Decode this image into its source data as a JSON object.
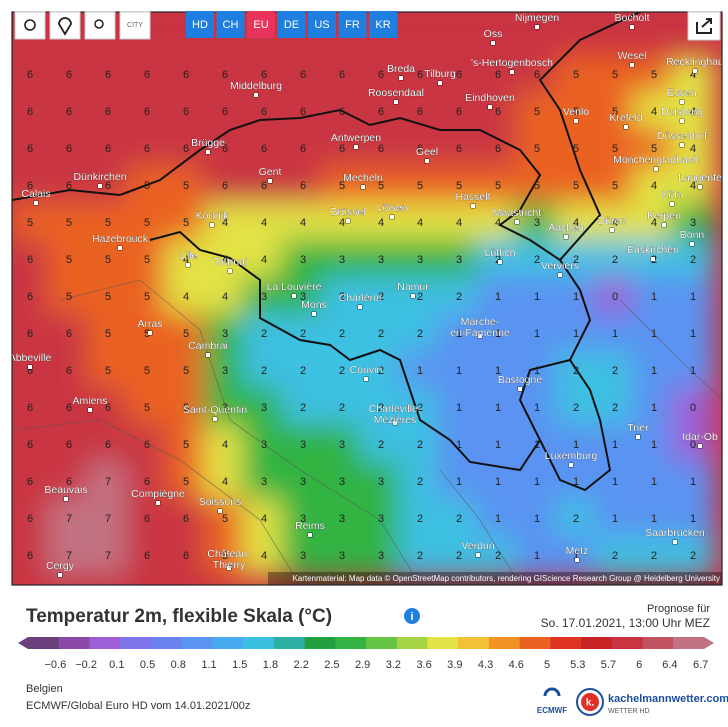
{
  "toolbar": {
    "city_icon": "CITY",
    "regions": [
      "HD",
      "CH",
      "EU",
      "DE",
      "US",
      "FR",
      "KR"
    ],
    "active_region": "EU"
  },
  "cities": [
    "Nijmegen",
    "Bocholt",
    "Oss",
    "'s-Hertogenbosch",
    "Wesel",
    "Recklinghau",
    "Breda",
    "Tilburg",
    "Middelburg",
    "Roosendaal",
    "Eindhoven",
    "Essen",
    "Duisburg",
    "Venlo",
    "Krefeld",
    "Düsseldorf",
    "Antwerpen",
    "Brügge",
    "Mönchengladbach",
    "Geel",
    "Gent",
    "Langenfe",
    "Dünkirchen",
    "Mecheln",
    "Calais",
    "Hasselt",
    "Köln",
    "Kortrijk",
    "Brüssel",
    "Löwen",
    "Maastricht",
    "Düren",
    "Kerpen",
    "Hazebrouck",
    "Aachen",
    "Bonn",
    "Euskirchen",
    "Lüttich",
    "Lille",
    "Tournai",
    "Verviers",
    "La Louvière",
    "Namur",
    "Mons",
    "Charleroi",
    "Arras",
    "Marche-\nen-Famenne",
    "Cambrai",
    "Abbeville",
    "Couvin",
    "Bastogne",
    "Amiens",
    "Saint-Quentin",
    "Charleville-\nMézières",
    "Trier",
    "Idar-Ob",
    "Luxemburg",
    "Beauvais",
    "Compiègne",
    "Soissons",
    "Saarbrücken",
    "Reims",
    "Verdun",
    "Metz",
    "Château-\nThierry",
    "Cergy"
  ],
  "grid": {
    "rows": [
      [
        6,
        6,
        6,
        6,
        6,
        6,
        6,
        6,
        6,
        6,
        6,
        6,
        6,
        6,
        5,
        5,
        5,
        4
      ],
      [
        6,
        6,
        6,
        6,
        6,
        6,
        6,
        6,
        6,
        6,
        6,
        6,
        6,
        5,
        5,
        5,
        4,
        4
      ],
      [
        6,
        6,
        6,
        6,
        6,
        6,
        6,
        6,
        6,
        6,
        6,
        6,
        6,
        5,
        5,
        5,
        5,
        4
      ],
      [
        6,
        6,
        6,
        5,
        5,
        6,
        6,
        6,
        5,
        5,
        5,
        5,
        5,
        5,
        5,
        5,
        4,
        4
      ],
      [
        5,
        5,
        5,
        5,
        5,
        4,
        4,
        4,
        4,
        4,
        4,
        4,
        4,
        3,
        4,
        4,
        4,
        3
      ],
      [
        6,
        5,
        5,
        5,
        4,
        4,
        4,
        3,
        3,
        3,
        3,
        3,
        2,
        2,
        2,
        2,
        2,
        2
      ],
      [
        6,
        5,
        5,
        5,
        4,
        4,
        3,
        3,
        2,
        2,
        2,
        2,
        1,
        1,
        1,
        0,
        1,
        1
      ],
      [
        6,
        6,
        5,
        5,
        5,
        3,
        2,
        2,
        2,
        2,
        2,
        1,
        1,
        1,
        1,
        1,
        1,
        1
      ],
      [
        6,
        6,
        5,
        5,
        5,
        3,
        2,
        2,
        2,
        2,
        1,
        1,
        1,
        1,
        2,
        2,
        1,
        1
      ],
      [
        6,
        6,
        6,
        5,
        5,
        3,
        3,
        2,
        2,
        2,
        2,
        1,
        1,
        1,
        2,
        2,
        1,
        0
      ],
      [
        6,
        6,
        6,
        6,
        5,
        4,
        3,
        3,
        3,
        2,
        2,
        1,
        1,
        1,
        1,
        1,
        1,
        0
      ],
      [
        6,
        6,
        7,
        6,
        5,
        4,
        3,
        3,
        3,
        3,
        2,
        1,
        1,
        1,
        1,
        1,
        1,
        1
      ],
      [
        6,
        7,
        7,
        6,
        6,
        5,
        4,
        3,
        3,
        3,
        2,
        2,
        1,
        1,
        2,
        1,
        1,
        1
      ],
      [
        6,
        7,
        7,
        6,
        6,
        5,
        4,
        3,
        3,
        3,
        2,
        2,
        2,
        1,
        1,
        2,
        2,
        2
      ]
    ]
  },
  "attribution": "Kartenmaterial: Map data © OpenStreetMap contributors, rendering GIScience Research Group @ Heidelberg University",
  "legend": {
    "title": "Temperatur 2m, flexible Skala (°C)",
    "info": "i",
    "stops": [
      {
        "value": -0.6,
        "label": "−0.6",
        "color": "#6b3f7c"
      },
      {
        "value": -0.2,
        "label": "−0.2",
        "color": "#8d49a8"
      },
      {
        "value": 0.1,
        "label": "0.1",
        "color": "#9e5fd6"
      },
      {
        "value": 0.5,
        "label": "0.5",
        "color": "#7f73ea"
      },
      {
        "value": 0.8,
        "label": "0.8",
        "color": "#6a82f0"
      },
      {
        "value": 1.1,
        "label": "1.1",
        "color": "#5a93f2"
      },
      {
        "value": 1.5,
        "label": "1.5",
        "color": "#4aaaf0"
      },
      {
        "value": 1.8,
        "label": "1.8",
        "color": "#3cc0e2"
      },
      {
        "value": 2.2,
        "label": "2.2",
        "color": "#2cb0a4"
      },
      {
        "value": 2.5,
        "label": "2.5",
        "color": "#22a040"
      },
      {
        "value": 2.9,
        "label": "2.9",
        "color": "#33b343"
      },
      {
        "value": 3.2,
        "label": "3.2",
        "color": "#66c444"
      },
      {
        "value": 3.6,
        "label": "3.6",
        "color": "#a6d444"
      },
      {
        "value": 3.9,
        "label": "3.9",
        "color": "#e2e244"
      },
      {
        "value": 4.3,
        "label": "4.3",
        "color": "#f2c234"
      },
      {
        "value": 4.6,
        "label": "4.6",
        "color": "#f29224"
      },
      {
        "value": 5,
        "label": "5",
        "color": "#ea6222"
      },
      {
        "value": 5.3,
        "label": "5.3",
        "color": "#e03422"
      },
      {
        "value": 5.7,
        "label": "5.7",
        "color": "#c92424"
      },
      {
        "value": 6,
        "label": "6",
        "color": "#c93442"
      },
      {
        "value": 6.4,
        "label": "6.4",
        "color": "#c15262"
      },
      {
        "value": 6.7,
        "label": "6.7",
        "color": "#c27282"
      }
    ]
  },
  "forecast": {
    "label": "Prognose für",
    "time": "So. 17.01.2021, 13:00 Uhr MEZ"
  },
  "footer": {
    "region": "Belgien",
    "model": "ECMWF/Global Euro HD vom 14.01.2021/00z",
    "ecmwf": "ECMWF",
    "site": "kachelmannwetter.com",
    "site_sub": "WETTER HD",
    "logo": "k."
  }
}
